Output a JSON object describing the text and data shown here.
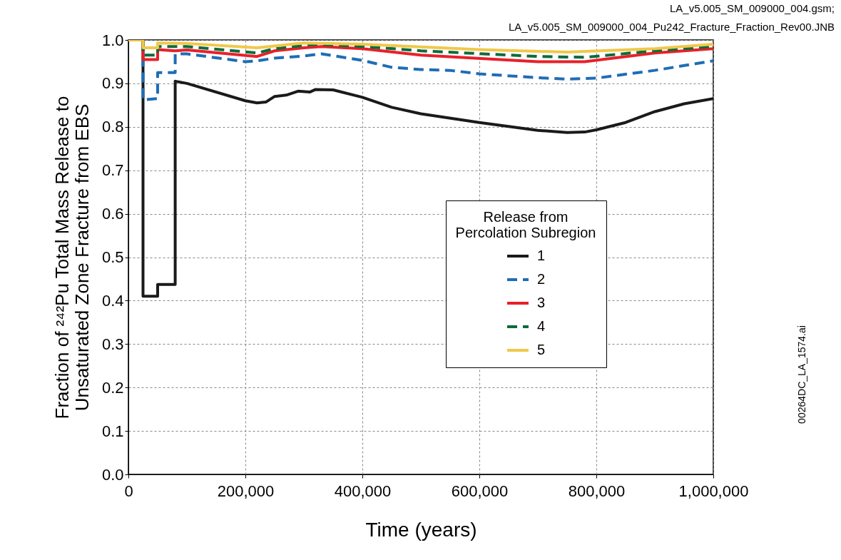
{
  "chart_data": {
    "type": "line",
    "xlabel": "Time (years)",
    "ylabel": [
      "Fraction of ²⁴²Pu Total Mass Release to",
      "Unsaturated Zone Fracture from EBS"
    ],
    "legend_title": [
      "Release from",
      "Percolation Subregion"
    ],
    "legend": "bottom right",
    "grid": true,
    "annotations": [
      "LA_v5.005_SM_009000_004.gsm;",
      "LA_v5.005_SM_009000_004_Pu242_Fracture_Fraction_Rev00.JNB",
      "00264DC_LA_1574.ai"
    ],
    "xlim": [
      0,
      1000000
    ],
    "ylim": [
      0,
      1
    ],
    "xticks": [
      0,
      {
        "value": 200000,
        "label": "200,000"
      },
      {
        "value": 400000,
        "label": "400,000"
      },
      {
        "value": 600000,
        "label": "600,000"
      },
      {
        "value": 800000,
        "label": "800,000"
      },
      {
        "value": 1000000,
        "label": "1,000,000"
      }
    ],
    "yticks": [
      {
        "value": 0,
        "label": "0.0"
      },
      0.1,
      0.2,
      0.3,
      0.4,
      0.5,
      0.6,
      0.7,
      0.8,
      0.9,
      {
        "value": 1,
        "label": "1.0"
      }
    ],
    "series": [
      {
        "name": "1",
        "color": "#1a1a1a",
        "line_style": "solid",
        "x": [
          0,
          25000,
          25000,
          50000,
          50000,
          80000,
          80000,
          100000,
          200000,
          220000,
          235000,
          250000,
          270000,
          290000,
          310000,
          320000,
          350000,
          400000,
          450000,
          500000,
          600000,
          700000,
          750000,
          780000,
          800000,
          850000,
          900000,
          950000,
          1000000
        ],
        "values": [
          1.0,
          1.0,
          0.41,
          0.41,
          0.437,
          0.437,
          0.905,
          0.9,
          0.86,
          0.855,
          0.857,
          0.87,
          0.873,
          0.882,
          0.88,
          0.886,
          0.885,
          0.868,
          0.845,
          0.83,
          0.81,
          0.792,
          0.787,
          0.788,
          0.793,
          0.81,
          0.835,
          0.853,
          0.865
        ]
      },
      {
        "name": "2",
        "color": "#1f6db5",
        "line_style": "dashed",
        "x": [
          0,
          25000,
          25000,
          50000,
          50000,
          80000,
          80000,
          100000,
          200000,
          220000,
          250000,
          300000,
          330000,
          400000,
          450000,
          500000,
          550000,
          600000,
          700000,
          750000,
          800000,
          900000,
          1000000
        ],
        "values": [
          1.0,
          1.0,
          0.862,
          0.865,
          0.925,
          0.925,
          0.968,
          0.968,
          0.95,
          0.952,
          0.958,
          0.963,
          0.968,
          0.953,
          0.937,
          0.932,
          0.93,
          0.922,
          0.913,
          0.91,
          0.912,
          0.93,
          0.952
        ]
      },
      {
        "name": "3",
        "color": "#e8202a",
        "line_style": "solid",
        "x": [
          0,
          25000,
          25000,
          50000,
          50000,
          80000,
          100000,
          220000,
          250000,
          300000,
          330000,
          400000,
          500000,
          700000,
          780000,
          900000,
          1000000
        ],
        "values": [
          1.0,
          1.0,
          0.955,
          0.955,
          0.978,
          0.975,
          0.977,
          0.962,
          0.975,
          0.982,
          0.985,
          0.98,
          0.965,
          0.95,
          0.95,
          0.97,
          0.98
        ]
      },
      {
        "name": "4",
        "color": "#0e6b3a",
        "line_style": "dashed",
        "x": [
          0,
          25000,
          25000,
          50000,
          50000,
          100000,
          220000,
          250000,
          320000,
          400000,
          500000,
          700000,
          780000,
          900000,
          1000000
        ],
        "values": [
          1.0,
          1.0,
          0.965,
          0.965,
          0.985,
          0.985,
          0.97,
          0.98,
          0.99,
          0.985,
          0.975,
          0.962,
          0.96,
          0.975,
          0.985
        ]
      },
      {
        "name": "5",
        "color": "#f0c84a",
        "line_style": "solid",
        "x": [
          0,
          25000,
          25000,
          50000,
          50000,
          100000,
          220000,
          300000,
          400000,
          600000,
          750000,
          900000,
          1000000
        ],
        "values": [
          1.0,
          1.0,
          0.982,
          0.982,
          0.993,
          0.992,
          0.982,
          0.993,
          0.99,
          0.978,
          0.972,
          0.98,
          0.99
        ]
      }
    ]
  }
}
